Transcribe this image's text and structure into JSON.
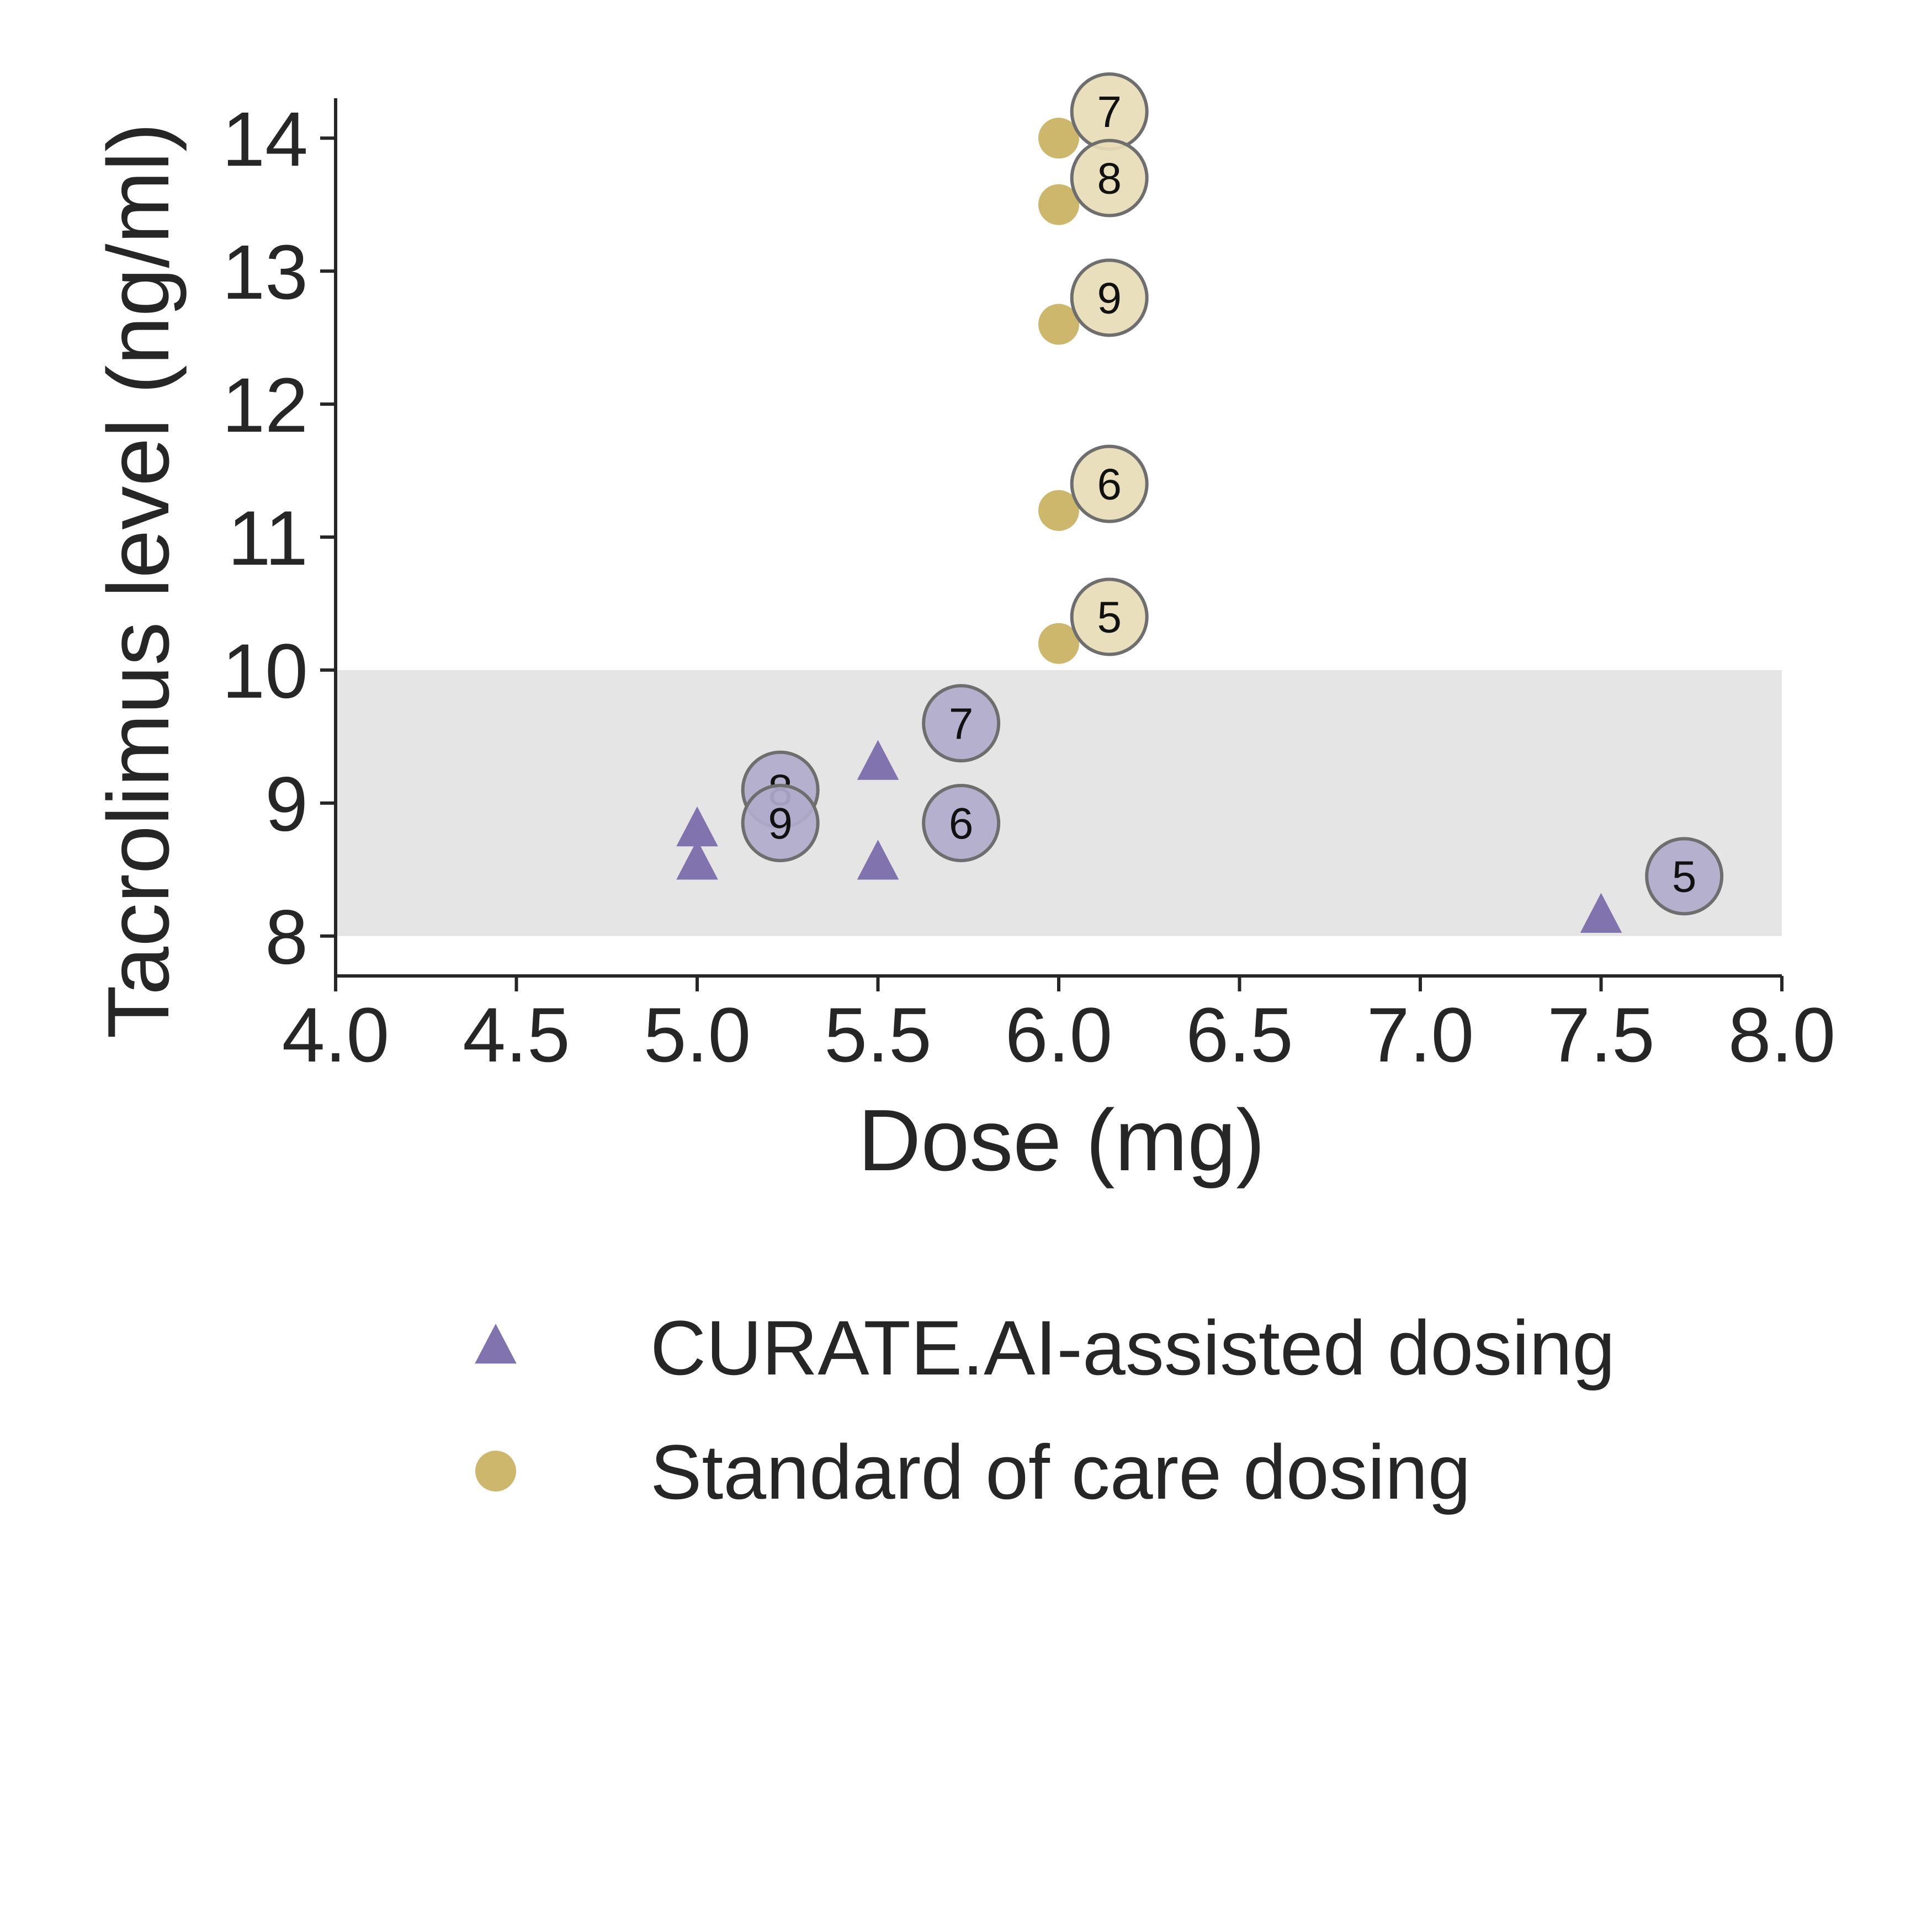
{
  "chart_data": {
    "type": "scatter",
    "xlabel": "Dose (mg)",
    "ylabel": "Tacrolimus level (ng/ml)",
    "xlim": [
      4.0,
      8.0
    ],
    "ylim": [
      7.7,
      14.3
    ],
    "xticks": [
      "4.0",
      "4.5",
      "5.0",
      "5.5",
      "6.0",
      "6.5",
      "7.0",
      "7.5",
      "8.0"
    ],
    "yticks": [
      "8",
      "9",
      "10",
      "11",
      "12",
      "13",
      "14"
    ],
    "target_range": [
      8,
      10
    ],
    "grid": false,
    "legend_position": "bottom",
    "series": [
      {
        "name": "CURATE.AI-assisted dosing",
        "marker": "triangle",
        "color": "#8173ad",
        "label_color": "#b1abcc",
        "points": [
          {
            "x": 5.0,
            "y": 8.8
          },
          {
            "x": 5.0,
            "y": 8.55
          },
          {
            "x": 5.5,
            "y": 9.3
          },
          {
            "x": 5.5,
            "y": 8.55
          },
          {
            "x": 7.5,
            "y": 8.15
          }
        ],
        "day_labels": [
          {
            "label": "8",
            "x": 5.23,
            "y": 9.1
          },
          {
            "label": "9",
            "x": 5.23,
            "y": 8.85
          },
          {
            "label": "7",
            "x": 5.73,
            "y": 9.6
          },
          {
            "label": "6",
            "x": 5.73,
            "y": 8.85
          },
          {
            "label": "5",
            "x": 7.73,
            "y": 8.45
          }
        ]
      },
      {
        "name": "Standard of care dosing",
        "marker": "circle",
        "color": "#cdb76d",
        "label_color": "#e8dcb7",
        "points": [
          {
            "x": 6.0,
            "y": 14.0
          },
          {
            "x": 6.0,
            "y": 13.5
          },
          {
            "x": 6.0,
            "y": 12.6
          },
          {
            "x": 6.0,
            "y": 11.2
          },
          {
            "x": 6.0,
            "y": 10.2
          }
        ],
        "day_labels": [
          {
            "label": "7",
            "x": 6.14,
            "y": 14.2
          },
          {
            "label": "8",
            "x": 6.14,
            "y": 13.7
          },
          {
            "label": "9",
            "x": 6.14,
            "y": 12.8
          },
          {
            "label": "6",
            "x": 6.14,
            "y": 11.4
          },
          {
            "label": "5",
            "x": 6.14,
            "y": 10.4
          }
        ]
      }
    ]
  }
}
